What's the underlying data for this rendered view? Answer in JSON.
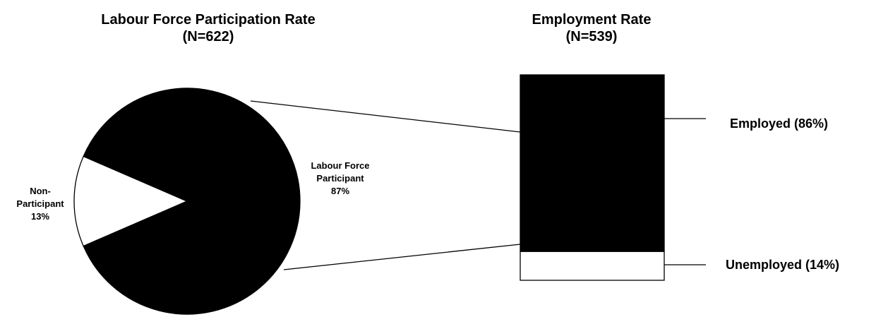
{
  "chart_data": [
    {
      "type": "pie",
      "title": "Labour Force Participation Rate",
      "subtitle": "(N=622)",
      "categories": [
        "Non-Participant",
        "Labour Force Participant"
      ],
      "values": [
        13,
        87
      ],
      "value_labels": [
        "13%",
        "87%"
      ],
      "colors": [
        "#ffffff",
        "#000000"
      ]
    },
    {
      "type": "bar",
      "title": "Employment Rate",
      "subtitle": "(N=539)",
      "series": [
        {
          "name": "Employed (86%)",
          "color": "#000000",
          "values": [
            86
          ]
        },
        {
          "name": "Unemployed (14%)",
          "color": "#ffffff",
          "values": [
            14
          ]
        }
      ]
    }
  ]
}
